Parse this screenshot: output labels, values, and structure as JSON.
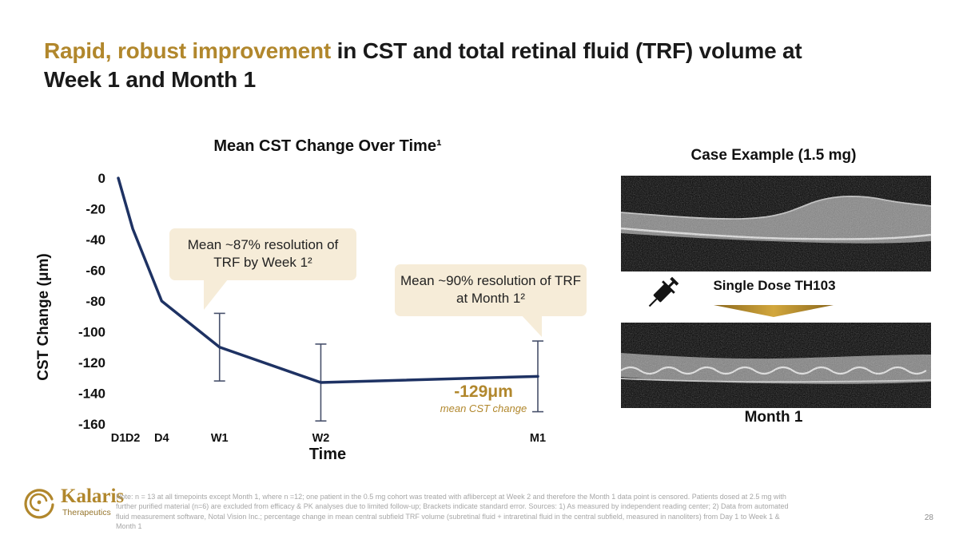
{
  "header": {
    "title_highlight": "Rapid, robust improvement",
    "title_rest": " in CST and total retinal fluid (TRF) volume at Week 1 and Month 1"
  },
  "chart_data": {
    "type": "line",
    "title": "Mean CST Change Over Time¹",
    "xlabel": "Time",
    "ylabel": "CST Change (μm)",
    "ylim": [
      -160,
      0
    ],
    "yticks": [
      0,
      -20,
      -40,
      -60,
      -80,
      -100,
      -120,
      -140,
      -160
    ],
    "categories": [
      "D1",
      "D2",
      "D4",
      "W1",
      "W2",
      "M1"
    ],
    "x_days": [
      1,
      2,
      4,
      8,
      15,
      30
    ],
    "values": [
      0,
      -33,
      -80,
      -110,
      -133,
      -129
    ],
    "stderr": [
      null,
      null,
      null,
      22,
      25,
      23
    ],
    "line_color": "#1e3263",
    "error_color": "#47506b",
    "grid": false,
    "legend": false
  },
  "annotations": {
    "callout_week1": "Mean ~87% resolution of TRF by Week 1²",
    "callout_month1": "Mean ~90% resolution of TRF at Month 1²",
    "result_value": "-129μm",
    "result_caption": "mean CST change"
  },
  "case_panel": {
    "title": "Case Example (1.5 mg)",
    "dose_label": "Single Dose TH103",
    "month_label": "Month 1"
  },
  "footer": {
    "logo_name": "Kalaris",
    "logo_sub": "Therapeutics",
    "note_text": "Note: n = 13 at all timepoints except Month 1, where n =12; one patient in the 0.5 mg cohort was treated with aflibercept at Week 2 and therefore the  Month 1 data point is censored. Patients dosed at 2.5 mg with further purified material (n=6) are excluded from efficacy & PK analyses due to limited follow-up; Brackets indicate standard error. Sources: 1) As measured by independent reading center; 2) Data from automated fluid measurement software, Notal Vision Inc.; percentage change in mean central subfield TRF volume (subretinal fluid + intraretinal fluid in the central subfield, measured in nanoliters) from Day 1 to Week 1 & Month 1",
    "page_number": "28"
  },
  "colors": {
    "gold": "#b1872c",
    "callout_bg": "#f6ecd8",
    "line_navy": "#1e3263"
  }
}
